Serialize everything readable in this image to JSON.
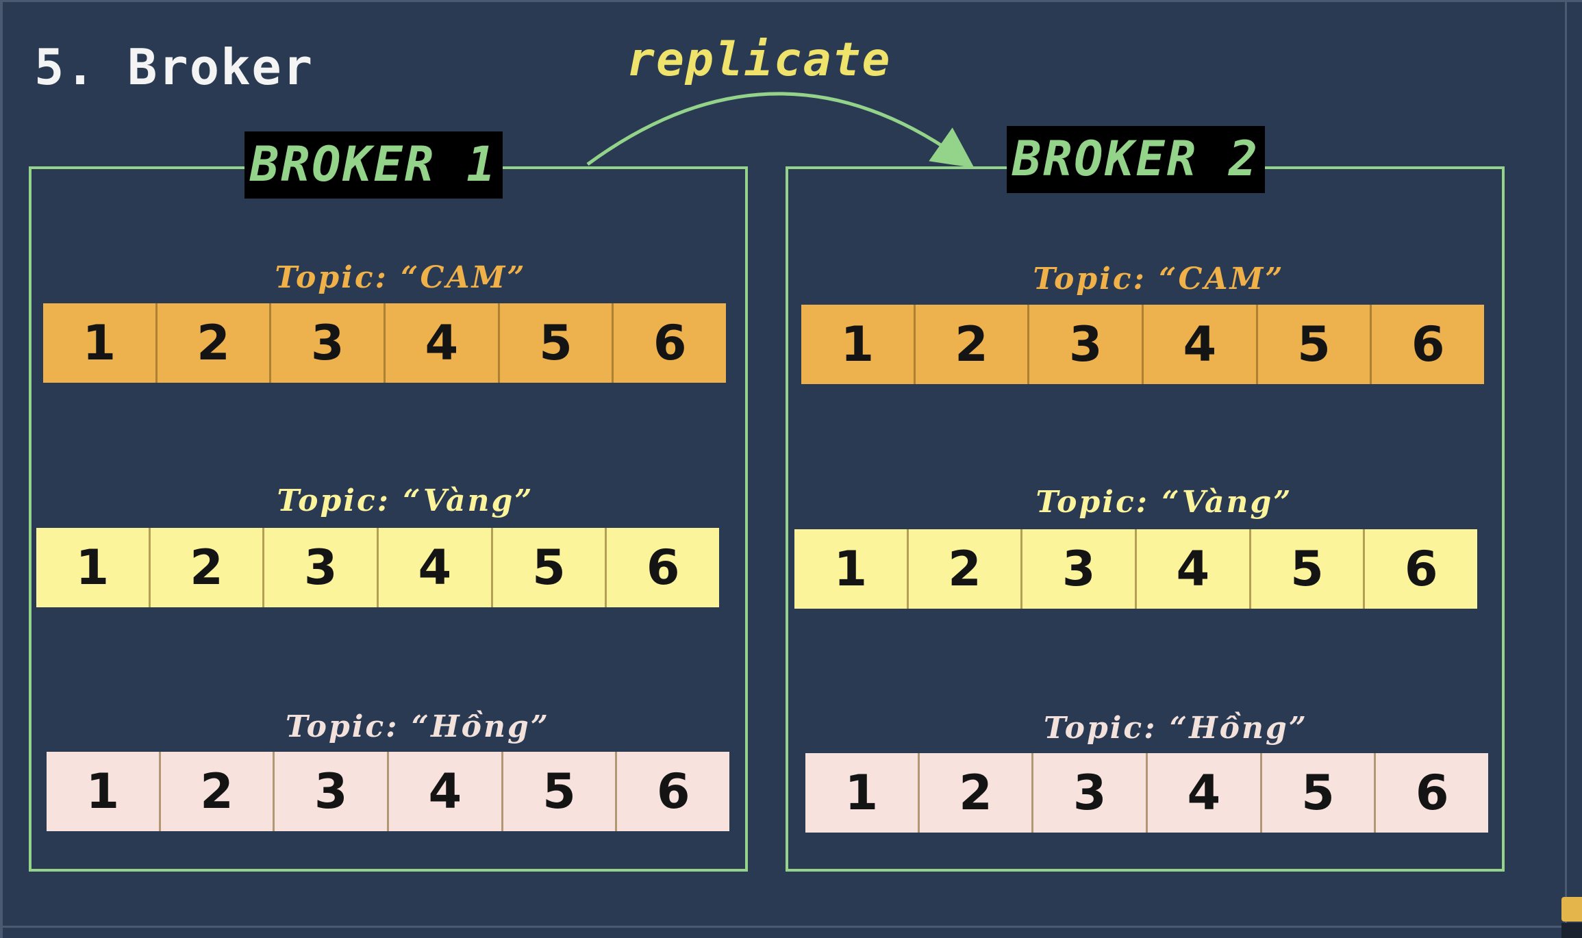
{
  "title": "5. Broker",
  "arrow_label": "replicate",
  "colors": {
    "background": "#2a3a52",
    "broker_border": "#93d38a",
    "arrow": "#93d38a",
    "arrow_label": "#f0e36b",
    "topic_cam_fill": "#edb14d",
    "topic_cam_label": "#f0b148",
    "topic_vang_fill": "#fbf49b",
    "topic_vang_label": "#fbf49b",
    "topic_hong_fill": "#f7e2de",
    "topic_hong_label": "#f3e1dc"
  },
  "brokers": [
    {
      "label": "BROKER 1",
      "topics": [
        {
          "label": "Topic: “CAM”",
          "color": "cam",
          "partitions": [
            "1",
            "2",
            "3",
            "4",
            "5",
            "6"
          ]
        },
        {
          "label": "Topic: “Vàng”",
          "color": "vang",
          "partitions": [
            "1",
            "2",
            "3",
            "4",
            "5",
            "6"
          ]
        },
        {
          "label": "Topic: “Hồng”",
          "color": "hong",
          "partitions": [
            "1",
            "2",
            "3",
            "4",
            "5",
            "6"
          ]
        }
      ]
    },
    {
      "label": "BROKER 2",
      "topics": [
        {
          "label": "Topic: “CAM”",
          "color": "cam",
          "partitions": [
            "1",
            "2",
            "3",
            "4",
            "5",
            "6"
          ]
        },
        {
          "label": "Topic: “Vàng”",
          "color": "vang",
          "partitions": [
            "1",
            "2",
            "3",
            "4",
            "5",
            "6"
          ]
        },
        {
          "label": "Topic: “Hồng”",
          "color": "hong",
          "partitions": [
            "1",
            "2",
            "3",
            "4",
            "5",
            "6"
          ]
        }
      ]
    }
  ]
}
